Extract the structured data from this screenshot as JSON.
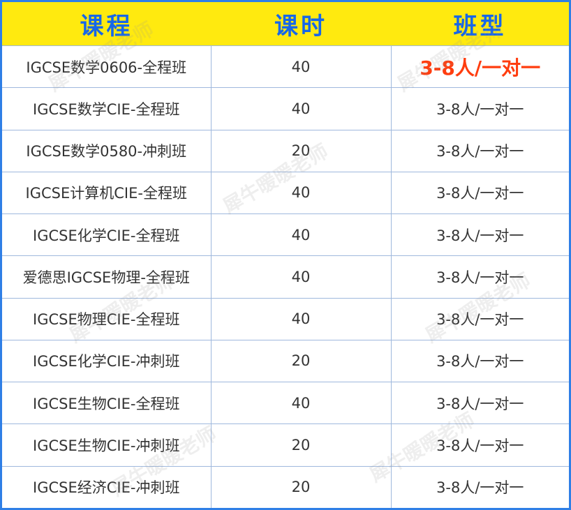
{
  "table": {
    "headers": [
      "课程",
      "课时",
      "班型"
    ],
    "rows": [
      [
        "IGCSE数学0606-全程班",
        "40",
        "3-8人/一对一"
      ],
      [
        "IGCSE数学CIE-全程班",
        "40",
        "3-8人/一对一"
      ],
      [
        "IGCSE数学0580-冲刺班",
        "20",
        "3-8人/一对一"
      ],
      [
        "IGCSE计算机CIE-全程班",
        "40",
        "3-8人/一对一"
      ],
      [
        "IGCSE化学CIE-全程班",
        "40",
        "3-8人/一对一"
      ],
      [
        "爱德思IGCSE物理-全程班",
        "40",
        "3-8人/一对一"
      ],
      [
        "IGCSE物理CIE-全程班",
        "40",
        "3-8人/一对一"
      ],
      [
        "IGCSE化学CIE-冲刺班",
        "20",
        "3-8人/一对一"
      ],
      [
        "IGCSE生物CIE-全程班",
        "40",
        "3-8人/一对一"
      ],
      [
        "IGCSE生物CIE-冲刺班",
        "20",
        "3-8人/一对一"
      ],
      [
        "IGCSE经济CIE-冲刺班",
        "20",
        "3-8人/一对一"
      ]
    ]
  },
  "watermark": "犀牛暖暖老师",
  "colors": {
    "header_bg": "#ffea0f",
    "header_text": "#1767e8",
    "highlight": "#ff3d0f",
    "border": "#2f7fe6"
  }
}
